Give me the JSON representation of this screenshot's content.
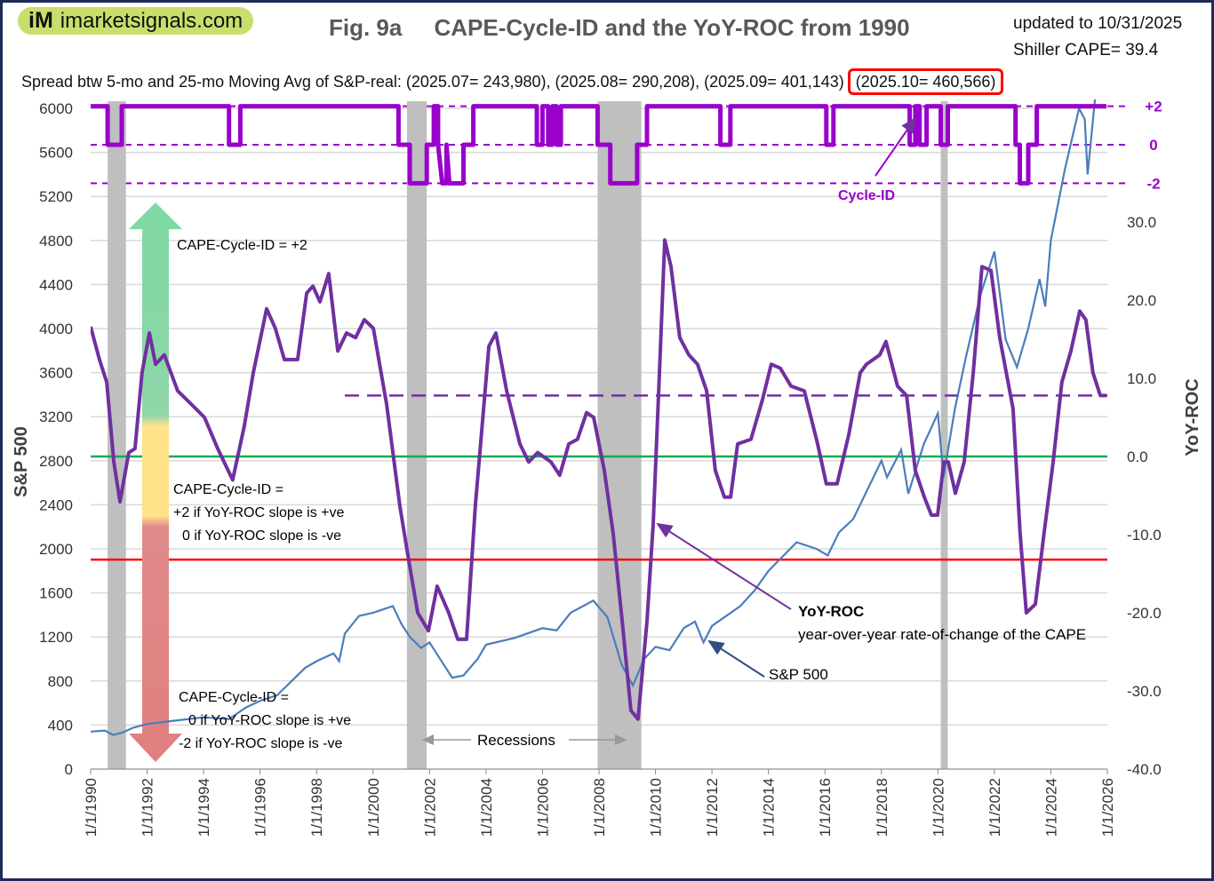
{
  "header": {
    "logo_mark": "iM",
    "logo_text": "imarketsignals.com",
    "title": "Fig. 9a     CAPE-Cycle-ID and the YoY-ROC from 1990",
    "updated": "updated to 10/31/2025",
    "shiller": "Shiller CAPE= 39.4",
    "spread_text": "Spread btw 5-mo and 25-mo Moving Avg of S&P-real: (2025.07= 243,980), (2025.08= 290,208), (2025.09= 401,143)",
    "spread_highlight": "(2025.10= 460,566)"
  },
  "chart_data": {
    "type": "line",
    "title": "CAPE-Cycle-ID and the YoY-ROC from 1990",
    "ylabel": "S&P 500",
    "ylabel_right": "YoY-ROC",
    "xlim": [
      1990,
      2026
    ],
    "ylim": [
      0,
      6000
    ],
    "ylim_right": [
      -40,
      30
    ],
    "x_ticks": [
      "1/1/1990",
      "1/1/1992",
      "1/1/1994",
      "1/1/1996",
      "1/1/1998",
      "1/1/2000",
      "1/1/2002",
      "1/1/2004",
      "1/1/2006",
      "1/1/2008",
      "1/1/2010",
      "1/1/2012",
      "1/1/2014",
      "1/1/2016",
      "1/1/2018",
      "1/1/2020",
      "1/1/2022",
      "1/1/2024",
      "1/1/2026"
    ],
    "y_ticks": [
      "0",
      "400",
      "800",
      "1200",
      "1600",
      "2000",
      "2400",
      "2800",
      "3200",
      "3600",
      "4000",
      "4400",
      "4800",
      "5200",
      "5600",
      "6000"
    ],
    "y_ticks_right": [
      "-40.0",
      "-30.0",
      "-20.0",
      "-10.0",
      "0.0",
      "10.0",
      "20.0",
      "30.0"
    ],
    "cycle_ticks": [
      "+2",
      "0",
      "-2"
    ],
    "grid": true,
    "colors": {
      "sp500": "#4a7ebb",
      "yoy": "#7030a0",
      "cycle": "#9900cc",
      "recession": "#bfbfbf",
      "green": "#00b050",
      "red": "#ff0000"
    },
    "recessions": [
      [
        1990.6,
        1991.25
      ],
      [
        2001.2,
        2001.9
      ],
      [
        2007.95,
        2009.5
      ],
      [
        2020.1,
        2020.35
      ]
    ],
    "reference_lines": {
      "zero_yoy": 0,
      "red_yoy": -13.2,
      "dashed_yoy": 7.8
    },
    "sp500": [
      [
        1990,
        340
      ],
      [
        1990.5,
        350
      ],
      [
        1990.8,
        310
      ],
      [
        1991.1,
        330
      ],
      [
        1991.5,
        375
      ],
      [
        1992,
        410
      ],
      [
        1993,
        440
      ],
      [
        1994,
        470
      ],
      [
        1994.9,
        455
      ],
      [
        1995.5,
        560
      ],
      [
        1996,
        620
      ],
      [
        1996.6,
        670
      ],
      [
        1997,
        770
      ],
      [
        1997.6,
        920
      ],
      [
        1998,
        980
      ],
      [
        1998.6,
        1050
      ],
      [
        1998.8,
        980
      ],
      [
        1999,
        1230
      ],
      [
        1999.5,
        1390
      ],
      [
        2000,
        1420
      ],
      [
        2000.7,
        1480
      ],
      [
        2001,
        1320
      ],
      [
        2001.3,
        1200
      ],
      [
        2001.7,
        1100
      ],
      [
        2002,
        1150
      ],
      [
        2002.5,
        950
      ],
      [
        2002.8,
        830
      ],
      [
        2003.2,
        850
      ],
      [
        2003.7,
        1000
      ],
      [
        2004,
        1130
      ],
      [
        2005,
        1190
      ],
      [
        2006,
        1280
      ],
      [
        2006.5,
        1260
      ],
      [
        2007,
        1420
      ],
      [
        2007.8,
        1530
      ],
      [
        2008.3,
        1380
      ],
      [
        2008.8,
        950
      ],
      [
        2009.2,
        760
      ],
      [
        2009.6,
        1000
      ],
      [
        2010,
        1110
      ],
      [
        2010.5,
        1080
      ],
      [
        2011,
        1280
      ],
      [
        2011.4,
        1340
      ],
      [
        2011.7,
        1150
      ],
      [
        2012,
        1300
      ],
      [
        2013,
        1480
      ],
      [
        2013.5,
        1620
      ],
      [
        2014,
        1800
      ],
      [
        2015,
        2060
      ],
      [
        2015.7,
        2000
      ],
      [
        2016.1,
        1940
      ],
      [
        2016.5,
        2150
      ],
      [
        2017,
        2270
      ],
      [
        2018,
        2800
      ],
      [
        2018.2,
        2650
      ],
      [
        2018.7,
        2900
      ],
      [
        2018.95,
        2500
      ],
      [
        2019.5,
        2950
      ],
      [
        2020,
        3230
      ],
      [
        2020.2,
        2650
      ],
      [
        2020.6,
        3270
      ],
      [
        2021,
        3750
      ],
      [
        2021.5,
        4300
      ],
      [
        2022,
        4700
      ],
      [
        2022.4,
        3900
      ],
      [
        2022.8,
        3650
      ],
      [
        2023.2,
        4000
      ],
      [
        2023.6,
        4450
      ],
      [
        2023.8,
        4200
      ],
      [
        2024,
        4800
      ],
      [
        2024.5,
        5450
      ],
      [
        2025,
        6000
      ],
      [
        2025.2,
        5900
      ],
      [
        2025.3,
        5400
      ],
      [
        2025.8,
        6700
      ]
    ],
    "yoy_roc": [
      [
        1990.0,
        16.6
      ],
      [
        1990.31,
        12.4
      ],
      [
        1990.57,
        9.5
      ],
      [
        1990.82,
        -0.7
      ],
      [
        1991.04,
        -5.8
      ],
      [
        1991.35,
        0.5
      ],
      [
        1991.57,
        1.0
      ],
      [
        1991.82,
        10.7
      ],
      [
        1992.08,
        15.8
      ],
      [
        1992.3,
        11.8
      ],
      [
        1992.61,
        13.0
      ],
      [
        1993.08,
        8.4
      ],
      [
        1993.56,
        6.7
      ],
      [
        1994.03,
        5.0
      ],
      [
        1994.5,
        1.0
      ],
      [
        1995.03,
        -3.0
      ],
      [
        1995.44,
        3.9
      ],
      [
        1995.76,
        10.7
      ],
      [
        1996.23,
        18.9
      ],
      [
        1996.54,
        16.4
      ],
      [
        1996.86,
        12.4
      ],
      [
        1997.33,
        12.4
      ],
      [
        1997.65,
        20.9
      ],
      [
        1997.87,
        21.8
      ],
      [
        1998.12,
        19.8
      ],
      [
        1998.43,
        23.4
      ],
      [
        1998.75,
        13.5
      ],
      [
        1999.06,
        15.8
      ],
      [
        1999.38,
        15.2
      ],
      [
        1999.69,
        17.5
      ],
      [
        2000.01,
        16.4
      ],
      [
        2000.48,
        6.7
      ],
      [
        2000.95,
        -6.4
      ],
      [
        2001.26,
        -13.2
      ],
      [
        2001.58,
        -20.0
      ],
      [
        2001.96,
        -22.3
      ],
      [
        2002.27,
        -16.6
      ],
      [
        2002.68,
        -20.0
      ],
      [
        2003.0,
        -23.4
      ],
      [
        2003.31,
        -23.4
      ],
      [
        2003.62,
        -6.4
      ],
      [
        2004.1,
        14.1
      ],
      [
        2004.35,
        15.8
      ],
      [
        2004.73,
        8.4
      ],
      [
        2005.2,
        1.6
      ],
      [
        2005.51,
        -0.7
      ],
      [
        2005.83,
        0.5
      ],
      [
        2006.3,
        -0.7
      ],
      [
        2006.61,
        -2.4
      ],
      [
        2006.93,
        1.6
      ],
      [
        2007.24,
        2.2
      ],
      [
        2007.56,
        5.6
      ],
      [
        2007.81,
        5.0
      ],
      [
        2008.19,
        -1.8
      ],
      [
        2008.5,
        -9.8
      ],
      [
        2008.82,
        -21.1
      ],
      [
        2009.13,
        -32.5
      ],
      [
        2009.38,
        -33.6
      ],
      [
        2009.7,
        -21.1
      ],
      [
        2009.92,
        -8.6
      ],
      [
        2010.14,
        10.7
      ],
      [
        2010.33,
        27.7
      ],
      [
        2010.55,
        24.3
      ],
      [
        2010.86,
        15.2
      ],
      [
        2011.18,
        13.0
      ],
      [
        2011.49,
        11.8
      ],
      [
        2011.81,
        8.4
      ],
      [
        2012.12,
        -1.8
      ],
      [
        2012.44,
        -5.2
      ],
      [
        2012.66,
        -5.2
      ],
      [
        2012.91,
        1.6
      ],
      [
        2013.38,
        2.2
      ],
      [
        2013.79,
        7.3
      ],
      [
        2014.1,
        11.8
      ],
      [
        2014.42,
        11.3
      ],
      [
        2014.8,
        9.0
      ],
      [
        2015.27,
        8.4
      ],
      [
        2015.74,
        1.6
      ],
      [
        2016.05,
        -3.5
      ],
      [
        2016.43,
        -3.5
      ],
      [
        2016.84,
        2.7
      ],
      [
        2017.25,
        10.7
      ],
      [
        2017.47,
        11.8
      ],
      [
        2017.94,
        13.0
      ],
      [
        2018.16,
        14.7
      ],
      [
        2018.57,
        9.0
      ],
      [
        2018.89,
        7.8
      ],
      [
        2019.2,
        -1.8
      ],
      [
        2019.52,
        -5.2
      ],
      [
        2019.77,
        -7.5
      ],
      [
        2019.99,
        -7.5
      ],
      [
        2020.21,
        -0.7
      ],
      [
        2020.37,
        -0.7
      ],
      [
        2020.62,
        -4.7
      ],
      [
        2020.93,
        -0.7
      ],
      [
        2021.25,
        10.7
      ],
      [
        2021.56,
        24.3
      ],
      [
        2021.88,
        23.8
      ],
      [
        2022.19,
        15.2
      ],
      [
        2022.66,
        6.1
      ],
      [
        2022.91,
        -9.8
      ],
      [
        2023.13,
        -20.0
      ],
      [
        2023.45,
        -18.9
      ],
      [
        2023.76,
        -9.8
      ],
      [
        2024.08,
        -0.7
      ],
      [
        2024.39,
        9.5
      ],
      [
        2024.71,
        13.5
      ],
      [
        2025.02,
        18.6
      ],
      [
        2025.24,
        17.5
      ],
      [
        2025.49,
        10.7
      ],
      [
        2025.75,
        7.8
      ],
      [
        2025.97,
        7.8
      ]
    ],
    "cycle_id": [
      [
        1990,
        2
      ],
      [
        1990.6,
        2
      ],
      [
        1990.6,
        0
      ],
      [
        1991.1,
        0
      ],
      [
        1991.1,
        2
      ],
      [
        1994.9,
        2
      ],
      [
        1994.9,
        0
      ],
      [
        1995.3,
        0
      ],
      [
        1995.3,
        2
      ],
      [
        2000.9,
        2
      ],
      [
        2000.9,
        0
      ],
      [
        2001.3,
        0
      ],
      [
        2001.3,
        -2
      ],
      [
        2001.9,
        -2
      ],
      [
        2001.9,
        0
      ],
      [
        2002.15,
        0
      ],
      [
        2002.15,
        2
      ],
      [
        2002.3,
        2
      ],
      [
        2002.3,
        0
      ],
      [
        2002.45,
        -2
      ],
      [
        2002.6,
        -2
      ],
      [
        2002.6,
        0
      ],
      [
        2002.7,
        -2
      ],
      [
        2003.2,
        -2
      ],
      [
        2003.2,
        0
      ],
      [
        2003.55,
        0
      ],
      [
        2003.55,
        2
      ],
      [
        2005.8,
        2
      ],
      [
        2005.8,
        0
      ],
      [
        2006.0,
        0
      ],
      [
        2006.0,
        2
      ],
      [
        2006.2,
        2
      ],
      [
        2006.2,
        0
      ],
      [
        2006.35,
        0
      ],
      [
        2006.35,
        2
      ],
      [
        2006.5,
        2
      ],
      [
        2006.5,
        0
      ],
      [
        2006.65,
        0
      ],
      [
        2006.65,
        2
      ],
      [
        2007.95,
        2
      ],
      [
        2007.95,
        0
      ],
      [
        2008.4,
        0
      ],
      [
        2008.4,
        -2
      ],
      [
        2009.35,
        -2
      ],
      [
        2009.35,
        0
      ],
      [
        2009.7,
        0
      ],
      [
        2009.7,
        2
      ],
      [
        2012.3,
        2
      ],
      [
        2012.3,
        0
      ],
      [
        2012.65,
        0
      ],
      [
        2012.65,
        2
      ],
      [
        2016.05,
        2
      ],
      [
        2016.05,
        0
      ],
      [
        2016.3,
        0
      ],
      [
        2016.3,
        2
      ],
      [
        2019.0,
        2
      ],
      [
        2019.0,
        0
      ],
      [
        2019.2,
        0
      ],
      [
        2019.2,
        2
      ],
      [
        2019.35,
        2
      ],
      [
        2019.35,
        0
      ],
      [
        2019.6,
        0
      ],
      [
        2019.6,
        2
      ],
      [
        2020.1,
        2
      ],
      [
        2020.1,
        0
      ],
      [
        2020.35,
        0
      ],
      [
        2020.35,
        2
      ],
      [
        2022.75,
        2
      ],
      [
        2022.75,
        0
      ],
      [
        2022.9,
        0
      ],
      [
        2022.9,
        -2
      ],
      [
        2023.2,
        -2
      ],
      [
        2023.2,
        0
      ],
      [
        2023.35,
        0
      ],
      [
        2023.5,
        0
      ],
      [
        2023.5,
        2
      ],
      [
        2025.97,
        2
      ]
    ],
    "annotations": {
      "cycle_id_label": "Cycle-ID",
      "cape_plus2": "CAPE-Cycle-ID = +2",
      "cape_mid_1": "CAPE-Cycle-ID =",
      "cape_mid_2": "+2 if YoY-ROC slope is +ve",
      "cape_mid_3": "0 if YoY-ROC slope is -ve",
      "cape_low_1": "CAPE-Cycle-ID =",
      "cape_low_2": "0 if YoY-ROC slope is +ve",
      "cape_low_3": "-2 if YoY-ROC slope is -ve",
      "yoy_title": "YoY-ROC",
      "yoy_desc": "year-over-year rate-of-change of the CAPE",
      "sp_label": "S&P 500",
      "recessions_label": "Recessions"
    }
  }
}
